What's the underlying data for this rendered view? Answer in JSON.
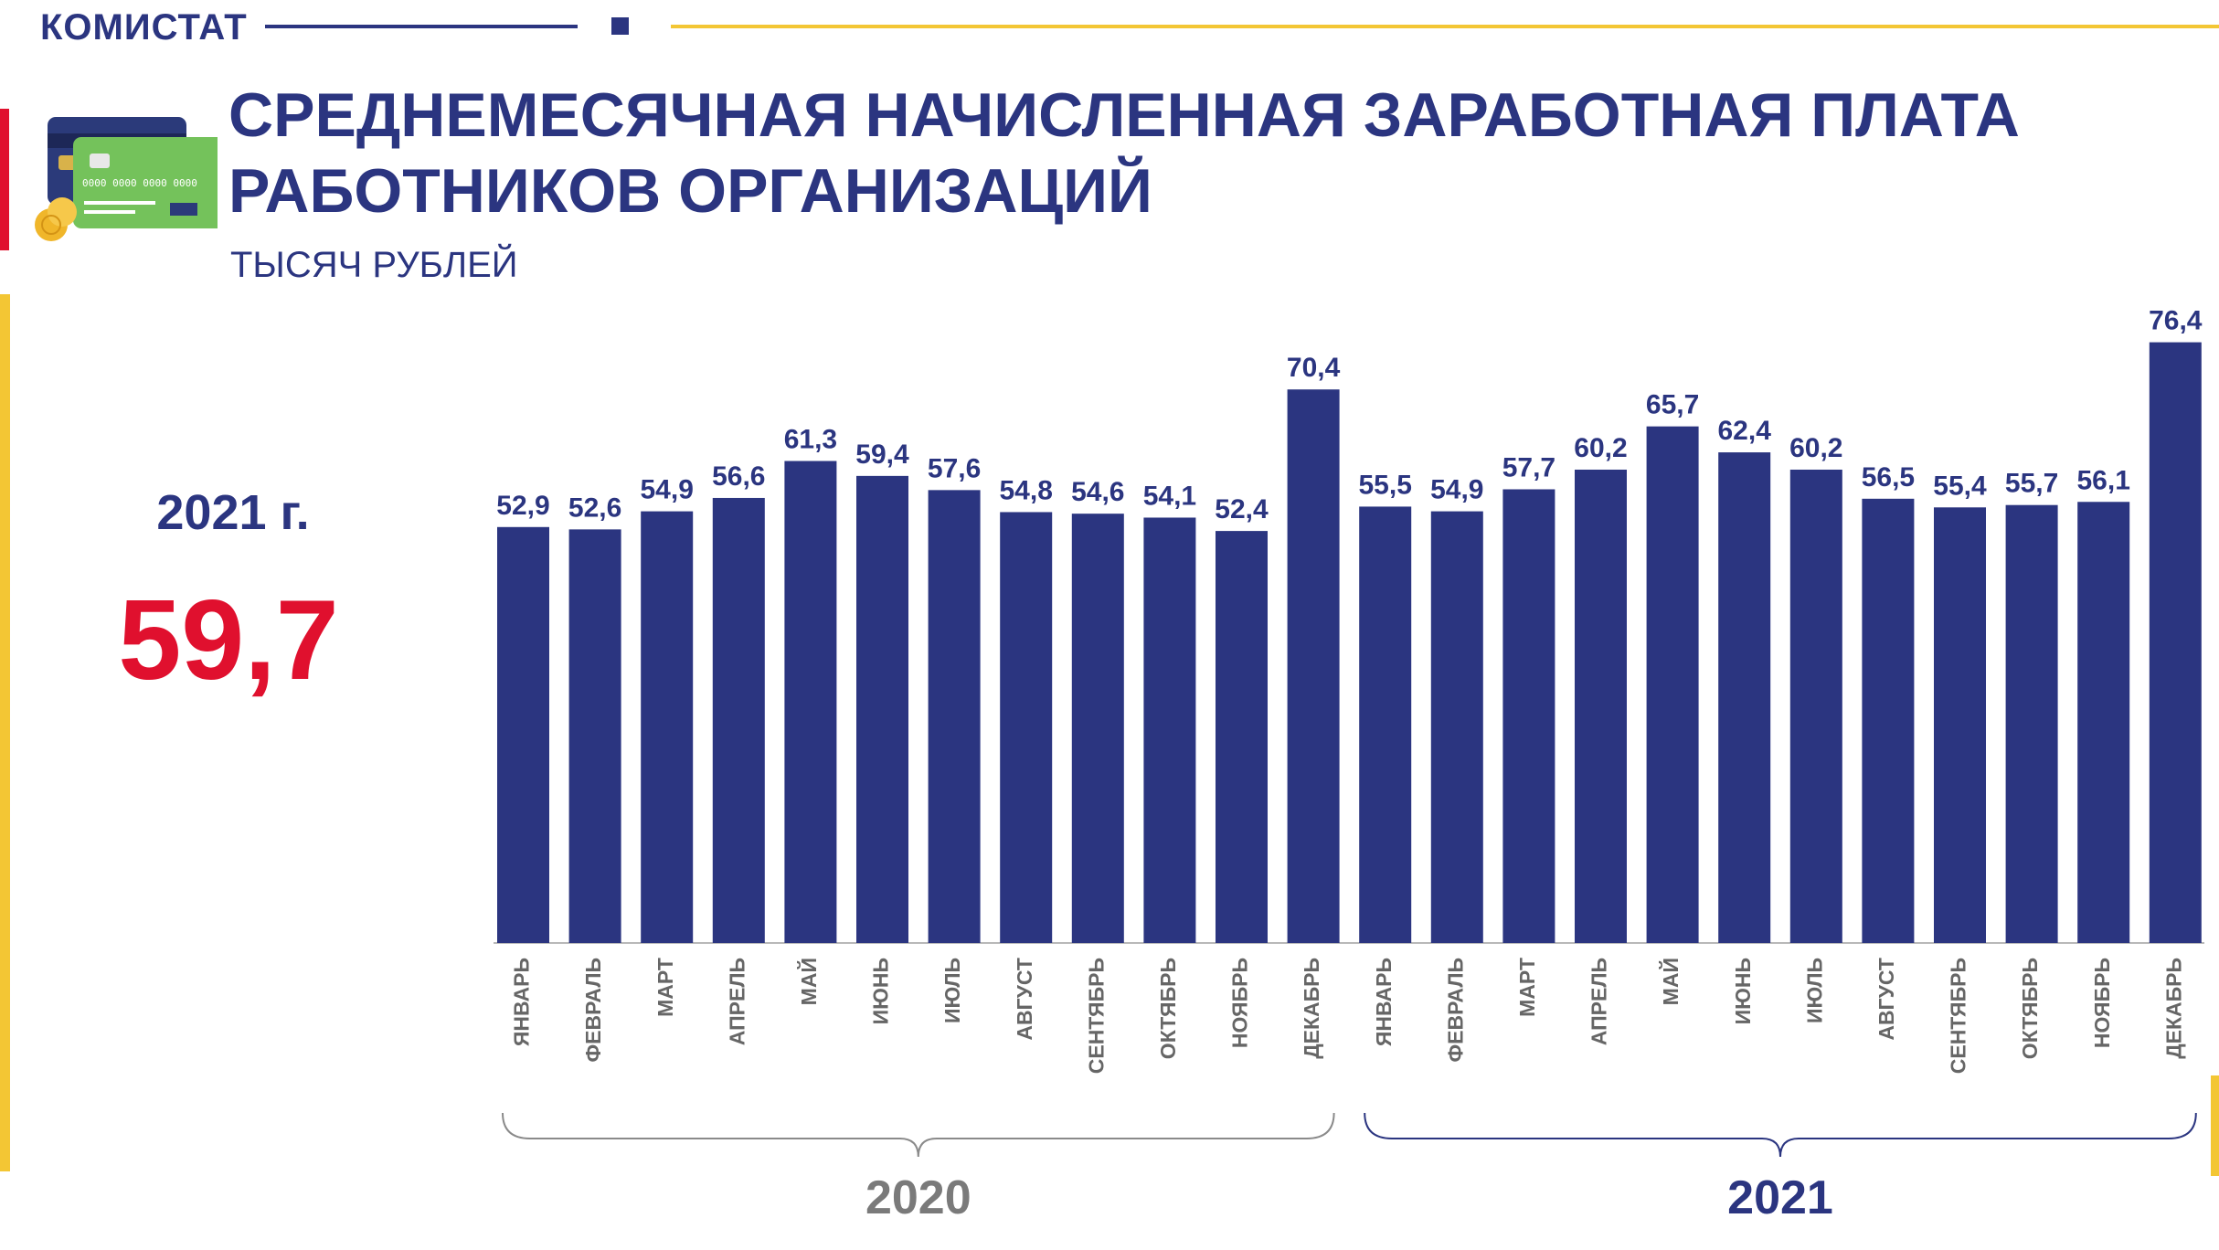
{
  "brand": "КОМИСТАТ",
  "title_line1": "СРЕДНЕМЕСЯЧНАЯ НАЧИСЛЕННАЯ ЗАРАБОТНАЯ ПЛАТА",
  "title_line2": "РАБОТНИКОВ ОРГАНИЗАЦИЙ",
  "subtitle": "ТЫСЯЧ РУБЛЕЙ",
  "kpi": {
    "year_label": "2021 г.",
    "value": "59,7"
  },
  "colors": {
    "bar": "#2b3580",
    "accent": "#e0102e",
    "gold": "#f3c634",
    "axis_text": "#666666"
  },
  "icon": "credit-cards-icon",
  "chart_data": {
    "type": "bar",
    "title": "СРЕДНЕМЕСЯЧНАЯ НАЧИСЛЕННАЯ ЗАРАБОТНАЯ ПЛАТА РАБОТНИКОВ ОРГАНИЗАЦИЙ",
    "ylabel": "ТЫСЯЧ РУБЛЕЙ",
    "ylim": [
      0,
      81
    ],
    "grid": false,
    "groups": [
      {
        "label": "2020",
        "categories": [
          "ЯНВАРЬ",
          "ФЕВРАЛЬ",
          "МАРТ",
          "АПРЕЛЬ",
          "МАЙ",
          "ИЮНЬ",
          "ИЮЛЬ",
          "АВГУСТ",
          "СЕНТЯБРЬ",
          "ОКТЯБРЬ",
          "НОЯБРЬ",
          "ДЕКАБРЬ"
        ],
        "values": [
          52.9,
          52.6,
          54.9,
          56.6,
          61.3,
          59.4,
          57.6,
          54.8,
          54.6,
          54.1,
          52.4,
          70.4
        ],
        "labels": [
          "52,9",
          "52,6",
          "54,9",
          "56,6",
          "61,3",
          "59,4",
          "57,6",
          "54,8",
          "54,6",
          "54,1",
          "52,4",
          "70,4"
        ]
      },
      {
        "label": "2021",
        "categories": [
          "ЯНВАРЬ",
          "ФЕВРАЛЬ",
          "МАРТ",
          "АПРЕЛЬ",
          "МАЙ",
          "ИЮНЬ",
          "ИЮЛЬ",
          "АВГУСТ",
          "СЕНТЯБРЬ",
          "ОКТЯБРЬ",
          "НОЯБРЬ",
          "ДЕКАБРЬ"
        ],
        "values": [
          55.5,
          54.9,
          57.7,
          60.2,
          65.7,
          62.4,
          60.2,
          56.5,
          55.4,
          55.7,
          56.1,
          76.4
        ],
        "labels": [
          "55,5",
          "54,9",
          "57,7",
          "60,2",
          "65,7",
          "62,4",
          "60,2",
          "56,5",
          "55,4",
          "55,7",
          "56,1",
          "76,4"
        ]
      }
    ]
  }
}
